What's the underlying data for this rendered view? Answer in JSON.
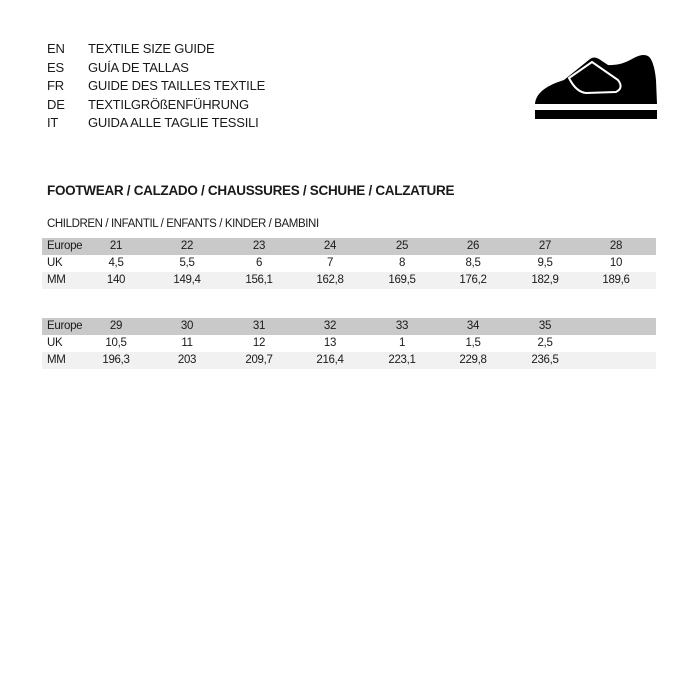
{
  "languages": [
    {
      "code": "EN",
      "text": "TEXTILE SIZE GUIDE"
    },
    {
      "code": "ES",
      "text": "GUÍA DE TALLAS"
    },
    {
      "code": "FR",
      "text": "GUIDE DES TAILLES TEXTILE"
    },
    {
      "code": "DE",
      "text": "TEXTILGRÖßENFÜHRUNG"
    },
    {
      "code": "IT",
      "text": "GUIDA ALLE TAGLIE TESSILI"
    }
  ],
  "icon": "shoe-velcro-icon",
  "title": "FOOTWEAR / CALZADO / CHAUSSURES / SCHUHE / CALZATURE",
  "subtitle": "CHILDREN / INFANTIL / ENFANTS / KINDER / BAMBINI",
  "tables": [
    {
      "rows": [
        {
          "label": "Europe",
          "values": [
            "21",
            "22",
            "23",
            "24",
            "25",
            "26",
            "27",
            "28"
          ]
        },
        {
          "label": "UK",
          "values": [
            "4,5",
            "5,5",
            "6",
            "7",
            "8",
            "8,5",
            "9,5",
            "10"
          ]
        },
        {
          "label": "MM",
          "values": [
            "140",
            "149,4",
            "156,1",
            "162,8",
            "169,5",
            "176,2",
            "182,9",
            "189,6"
          ]
        }
      ]
    },
    {
      "rows": [
        {
          "label": "Europe",
          "values": [
            "29",
            "30",
            "31",
            "32",
            "33",
            "34",
            "35"
          ]
        },
        {
          "label": "UK",
          "values": [
            "10,5",
            "11",
            "12",
            "13",
            "1",
            "1,5",
            "2,5"
          ]
        },
        {
          "label": "MM",
          "values": [
            "196,3",
            "203",
            "209,7",
            "216,4",
            "223,1",
            "229,8",
            "236,5"
          ]
        }
      ]
    }
  ]
}
